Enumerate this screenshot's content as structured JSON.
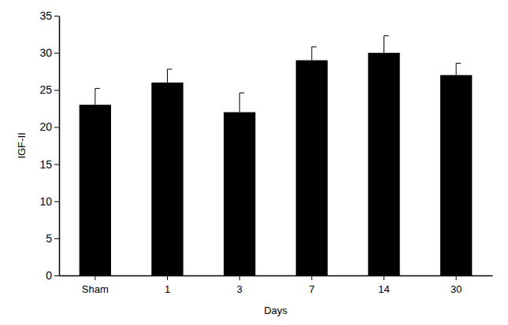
{
  "chart_data": {
    "type": "bar",
    "x_label": "Days",
    "y_label": "IGF-II",
    "categories": [
      "Sham",
      "1",
      "3",
      "7",
      "14",
      "30"
    ],
    "values": [
      23,
      26,
      22,
      29,
      30,
      27
    ],
    "errors": [
      2.2,
      1.8,
      2.6,
      1.8,
      2.3,
      1.6
    ],
    "color": "#000000",
    "ylim": [
      0,
      35
    ],
    "yticks": [
      0,
      5,
      10,
      15,
      20,
      25,
      30,
      35
    ],
    "grid": false
  }
}
